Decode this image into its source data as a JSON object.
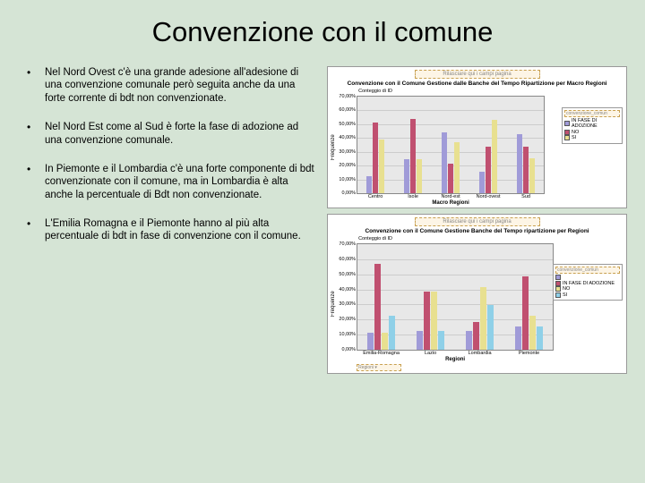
{
  "title": "Convenzione con il comune",
  "bullets": [
    " Nel Nord Ovest c'è una grande adesione all'adesione di una convenzione comunale però seguita anche da una forte corrente di bdt non convenzionate.",
    "Nel Nord Est come al Sud è forte la fase di adozione ad una convenzione comunale.",
    "In Piemonte e il Lombardia c'è una forte componente di bdt convenzionate con il comune, ma in Lombardia è alta anche la percentuale di Bdt non convenzionate.",
    "L'Emilia Romagna e il Piemonte hanno al più alta percentuale di bdt in fase di convenzione con il comune."
  ],
  "chart1": {
    "dropzone": "Rilasciare qui i campi pagina",
    "title": "Convenzione con il Comune Gestione dalle Banche del Tempo Ripartizione per Macro Regioni",
    "count_label": "Conteggio di ID",
    "ylabel": "Frequenze",
    "xaxis_title": "Macro Regioni",
    "ylim": 70,
    "yticks": [
      "70,00%",
      "60,00%",
      "50,00%",
      "40,00%",
      "30,00%",
      "20,00%",
      "10,00%",
      "0,00%"
    ],
    "categories": [
      "Centro",
      "Isole",
      "Nord-est",
      "Nord-ovest",
      "Sud"
    ],
    "series": [
      {
        "label": "IN FASE DI ADOZIONE",
        "color": "#a09bd8",
        "values": [
          12,
          24,
          43,
          15,
          42
        ]
      },
      {
        "label": "NO",
        "color": "#c05070",
        "values": [
          50,
          53,
          21,
          33,
          33
        ]
      },
      {
        "label": "SI",
        "color": "#e8e090",
        "values": [
          38,
          24,
          36,
          52,
          25
        ]
      }
    ],
    "legend_title": "convenzione_comun"
  },
  "chart2": {
    "dropzone": "Rilasciare qui i campi pagina",
    "title": "Convenzione con il Comune Gestione Banche del Tempo ripartizione per Regioni",
    "count_label": "Conteggio di ID",
    "ylabel": "Frequenze",
    "xaxis_title": "Regioni",
    "bottom_dropzone": "Regioni ▾",
    "ylim": 70,
    "yticks": [
      "70,00%",
      "60,00%",
      "50,00%",
      "40,00%",
      "30,00%",
      "20,00%",
      "10,00%",
      "0,00%"
    ],
    "categories": [
      "Emilia-Romagna",
      "Lazio",
      "Lombardia",
      "Piemonte"
    ],
    "series": [
      {
        "label": "",
        "color": "#a09bd8",
        "values": [
          11,
          12,
          12,
          15
        ]
      },
      {
        "label": "IN FASE DI ADOZIONE",
        "color": "#c05070",
        "values": [
          56,
          38,
          18,
          48
        ]
      },
      {
        "label": "NO",
        "color": "#e8e090",
        "values": [
          11,
          38,
          41,
          22
        ]
      },
      {
        "label": "SI",
        "color": "#8fd0e8",
        "values": [
          22,
          12,
          29,
          15
        ]
      }
    ],
    "legend_title": "convenzione_comun"
  }
}
